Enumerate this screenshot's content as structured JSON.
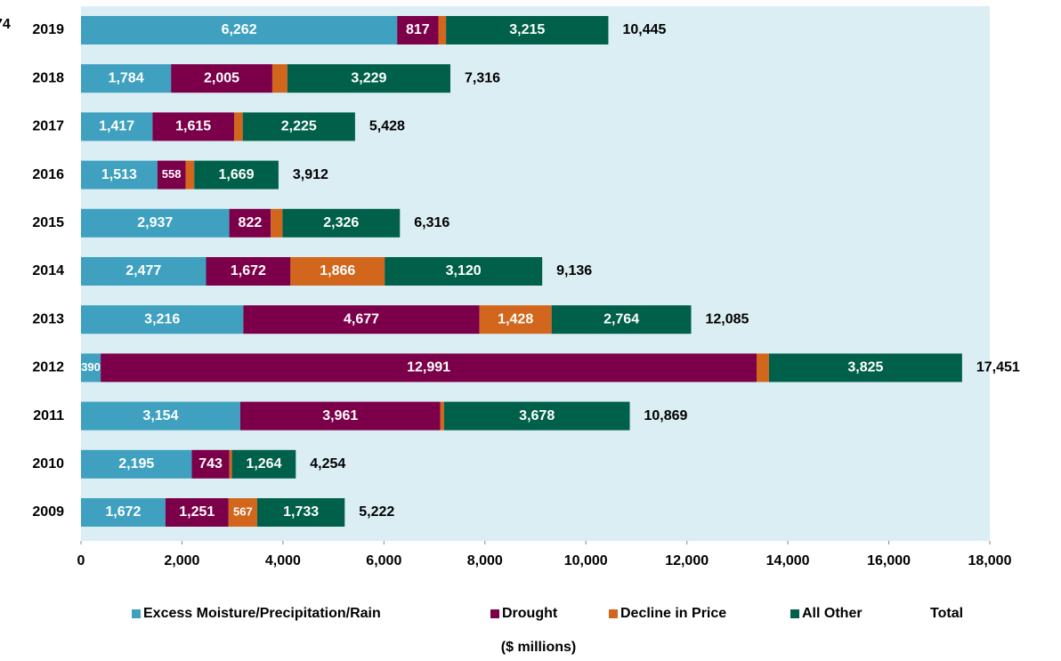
{
  "chart_data": {
    "type": "bar",
    "orientation": "horizontal",
    "stacked": true,
    "xlabel": "($ millions)",
    "annotation": "74",
    "categories": [
      "2019",
      "2018",
      "2017",
      "2016",
      "2015",
      "2014",
      "2013",
      "2012",
      "2011",
      "2010",
      "2009"
    ],
    "series": [
      {
        "name": "Excess Moisture/Precipitation/Rain",
        "color": "#3fa1bf",
        "values": [
          6262,
          1784,
          1417,
          1513,
          2937,
          2477,
          3216,
          390,
          3154,
          2195,
          1672
        ],
        "value_labels": [
          "6,262",
          "1,784",
          "1,417",
          "1,513",
          "2,937",
          "2,477",
          "3,216",
          "390",
          "3,154",
          "2,195",
          "1,672"
        ]
      },
      {
        "name": "Drought",
        "color": "#7c0049",
        "values": [
          817,
          2005,
          1615,
          558,
          822,
          1672,
          4677,
          12991,
          3961,
          743,
          1251
        ],
        "value_labels": [
          "817",
          "2,005",
          "1,615",
          "558",
          "822",
          "1,672",
          "4,677",
          "12,991",
          "3,961",
          "743",
          "1,251"
        ]
      },
      {
        "name": "Decline in Price",
        "color": "#d2661d",
        "values": [
          151,
          298,
          171,
          172,
          231,
          1866,
          1428,
          245,
          76,
          52,
          567
        ],
        "value_labels": [
          null,
          null,
          null,
          null,
          null,
          "1,866",
          "1,428",
          null,
          null,
          null,
          "567"
        ]
      },
      {
        "name": "All Other",
        "color": "#00604a",
        "values": [
          3215,
          3229,
          2225,
          1669,
          2326,
          3120,
          2764,
          3825,
          3678,
          1264,
          1733
        ],
        "value_labels": [
          "3,215",
          "3,229",
          "2,225",
          "1,669",
          "2,326",
          "3,120",
          "2,764",
          "3,825",
          "3,678",
          "1,264",
          "1,733"
        ]
      },
      {
        "name": "Total",
        "values": [
          10445,
          7316,
          5428,
          3912,
          6316,
          9136,
          12085,
          17451,
          10869,
          4254,
          5222
        ],
        "value_labels": [
          "10,445",
          "7,316",
          "5,428",
          "3,912",
          "6,316",
          "9,136",
          "12,085",
          "17,451",
          "10,869",
          "4,254",
          "5,222"
        ]
      }
    ],
    "xlim": [
      0,
      18000
    ],
    "xticks": [
      0,
      {
        "value": 2000,
        "label": "2,000"
      },
      {
        "value": 4000,
        "label": "4,000"
      },
      {
        "value": 6000,
        "label": "6,000"
      },
      {
        "value": 8000,
        "label": "8,000"
      },
      {
        "value": 10000,
        "label": "10,000"
      },
      {
        "value": 12000,
        "label": "12,000"
      },
      {
        "value": 14000,
        "label": "14,000"
      },
      {
        "value": 16000,
        "label": "16,000"
      },
      {
        "value": 18000,
        "label": "18,000"
      }
    ],
    "plot_background": "#daeef4"
  }
}
